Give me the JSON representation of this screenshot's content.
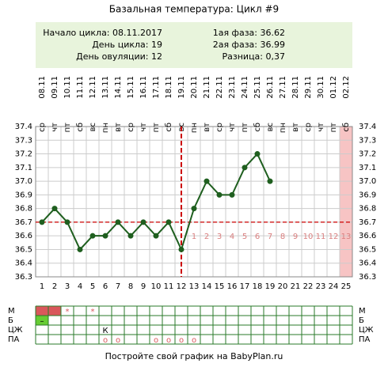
{
  "chart_data": {
    "type": "line",
    "title": "Базальная температура: Цикл #9",
    "info_left": [
      "Начало цикла: 08.11.2017",
      "День цикла: 19",
      "День овуляции: 12"
    ],
    "info_right": [
      "1ая фаза: 36.62",
      "2ая фаза: 36.99",
      "Разница: 0,37"
    ],
    "categories": [
      "08.11",
      "09.11",
      "10.11",
      "11.11",
      "12.11",
      "13.11",
      "14.11",
      "15.11",
      "16.11",
      "17.11",
      "18.11",
      "19.11",
      "20.11",
      "21.11",
      "22.11",
      "23.11",
      "24.11",
      "25.11",
      "26.11",
      "27.11",
      "28.11",
      "29.11",
      "30.11",
      "01.12",
      "02.12"
    ],
    "weekdays": [
      "ср",
      "чт",
      "пт",
      "сб",
      "вс",
      "пн",
      "вт",
      "ср",
      "чт",
      "пт",
      "сб",
      "вс",
      "пн",
      "вт",
      "ср",
      "чт",
      "пт",
      "сб",
      "вс",
      "пн",
      "вт",
      "ср",
      "чт",
      "пт",
      "сб"
    ],
    "x": [
      1,
      2,
      3,
      4,
      5,
      6,
      7,
      8,
      9,
      10,
      11,
      12,
      13,
      14,
      15,
      16,
      17,
      18,
      19,
      20,
      21,
      22,
      23,
      24,
      25
    ],
    "series": [
      {
        "color": "#1f5f1f",
        "values": [
          36.7,
          36.8,
          36.7,
          36.5,
          36.6,
          36.6,
          36.7,
          36.6,
          36.7,
          36.6,
          36.7,
          36.5,
          36.8,
          37.0,
          36.9,
          36.9,
          37.1,
          37.2,
          37.0,
          null,
          null,
          null,
          null,
          null,
          null
        ]
      }
    ],
    "luteal_days": [
      null,
      null,
      null,
      null,
      null,
      null,
      null,
      null,
      null,
      null,
      null,
      null,
      1,
      2,
      3,
      4,
      5,
      6,
      7,
      8,
      9,
      10,
      11,
      12,
      13
    ],
    "coverline": 36.7,
    "ovulation_x": 12,
    "today_x": 25,
    "ylim": [
      36.3,
      37.4
    ],
    "yticks": [
      36.3,
      36.4,
      36.5,
      36.6,
      {
        "value": 36.7,
        "label": "36.7"
      },
      36.8,
      36.9,
      {
        "value": 37,
        "label": "37.0"
      },
      37.1,
      37.2,
      37.3,
      37.4
    ],
    "grid": true,
    "rows": [
      {
        "label": "М",
        "color": "#d9575b",
        "filled_x": [
          1,
          2
        ],
        "cells": [
          null,
          null,
          "*",
          null,
          "*",
          null,
          null,
          null,
          null,
          null,
          null,
          null,
          null,
          null,
          null,
          null,
          null,
          null,
          null,
          null,
          null,
          null,
          null,
          null,
          null
        ]
      },
      {
        "label": "Б",
        "color": "#66cc33",
        "filled_x": [
          1
        ],
        "cells": [
          "–",
          null,
          null,
          null,
          null,
          null,
          null,
          null,
          null,
          null,
          null,
          null,
          null,
          null,
          null,
          null,
          null,
          null,
          null,
          null,
          null,
          null,
          null,
          null,
          null
        ]
      },
      {
        "label": "ЦЖ",
        "cells": [
          null,
          null,
          null,
          null,
          null,
          "К",
          null,
          null,
          null,
          null,
          null,
          null,
          null,
          null,
          null,
          null,
          null,
          null,
          null,
          null,
          null,
          null,
          null,
          null,
          null
        ]
      },
      {
        "label": "ПА",
        "cells": [
          null,
          null,
          null,
          null,
          null,
          "о",
          "о",
          null,
          null,
          "о",
          "о",
          "о",
          "о",
          null,
          null,
          null,
          null,
          null,
          null,
          null,
          null,
          null,
          null,
          null,
          null
        ]
      }
    ],
    "footer": "Постройте свой график на BabyPlan.ru"
  }
}
